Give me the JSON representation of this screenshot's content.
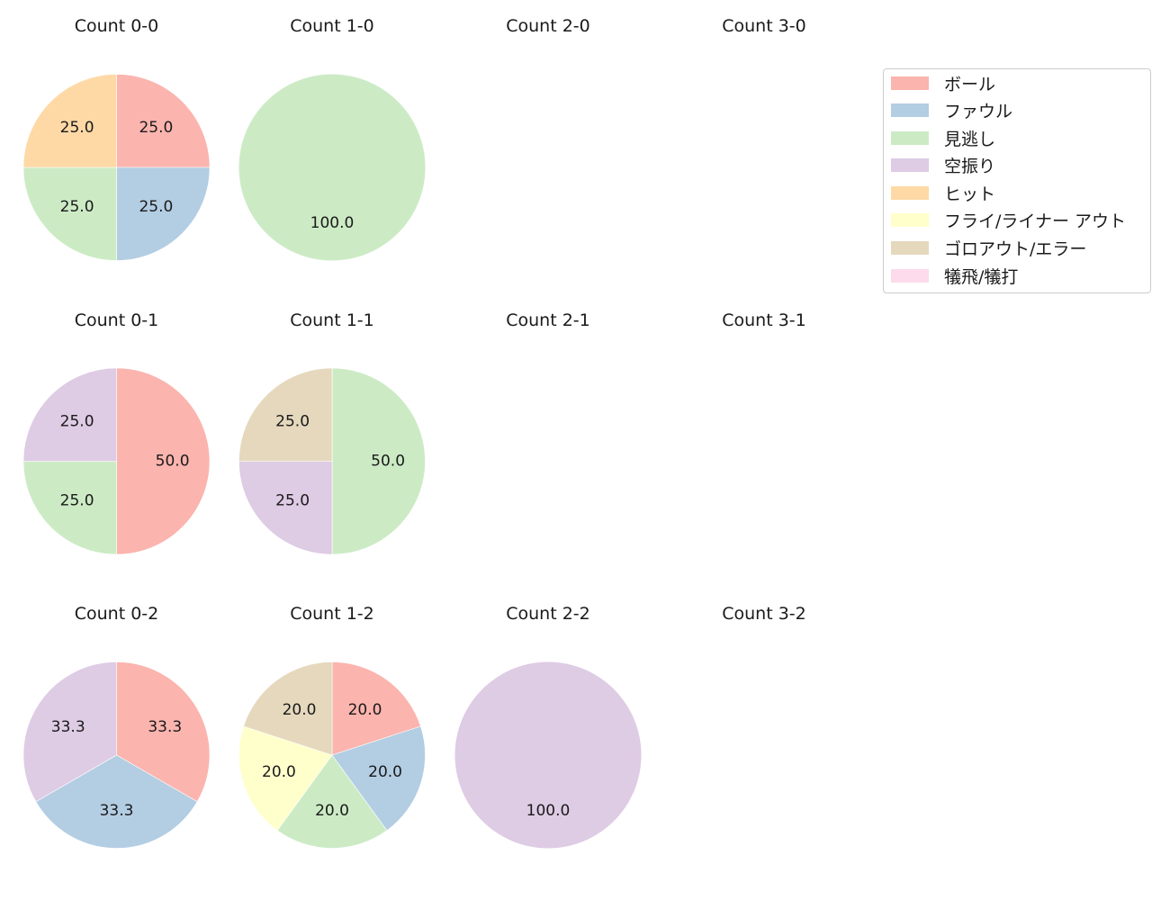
{
  "chart_data": {
    "type": "pie",
    "title": "",
    "start_angle": 90,
    "direction": "clockwise",
    "legend_position": "upper right",
    "categories": [
      "ボール",
      "ファウル",
      "見逃し",
      "空振り",
      "ヒット",
      "フライ/ライナー アウト",
      "ゴロアウト/エラー",
      "犠飛/犠打"
    ],
    "colors": [
      "#fbb4ae",
      "#b3cde3",
      "#ccebc5",
      "#decbe4",
      "#fed9a6",
      "#ffffcc",
      "#e5d8bd",
      "#fddaec"
    ],
    "charts": [
      {
        "title": "Count 0-0",
        "row": 0,
        "col": 0,
        "values": [
          25.0,
          25.0,
          25.0,
          0,
          25.0,
          0,
          0,
          0
        ]
      },
      {
        "title": "Count 1-0",
        "row": 0,
        "col": 1,
        "values": [
          0,
          0,
          100.0,
          0,
          0,
          0,
          0,
          0
        ]
      },
      {
        "title": "Count 2-0",
        "row": 0,
        "col": 2,
        "values": []
      },
      {
        "title": "Count 3-0",
        "row": 0,
        "col": 3,
        "values": []
      },
      {
        "title": "Count 0-1",
        "row": 1,
        "col": 0,
        "values": [
          50.0,
          0,
          25.0,
          25.0,
          0,
          0,
          0,
          0
        ]
      },
      {
        "title": "Count 1-1",
        "row": 1,
        "col": 1,
        "values": [
          0,
          0,
          50.0,
          25.0,
          0,
          0,
          25.0,
          0
        ]
      },
      {
        "title": "Count 2-1",
        "row": 1,
        "col": 2,
        "values": []
      },
      {
        "title": "Count 3-1",
        "row": 1,
        "col": 3,
        "values": []
      },
      {
        "title": "Count 0-2",
        "row": 2,
        "col": 0,
        "values": [
          33.3,
          33.3,
          0,
          33.3,
          0,
          0,
          0,
          0
        ]
      },
      {
        "title": "Count 1-2",
        "row": 2,
        "col": 1,
        "values": [
          20.0,
          20.0,
          20.0,
          0,
          0,
          20.0,
          20.0,
          0
        ]
      },
      {
        "title": "Count 2-2",
        "row": 2,
        "col": 2,
        "values": [
          0,
          0,
          0,
          100.0,
          0,
          0,
          0,
          0
        ]
      },
      {
        "title": "Count 3-2",
        "row": 2,
        "col": 3,
        "values": []
      }
    ]
  },
  "legend": {
    "items": [
      {
        "label": "ボール",
        "color": "#fbb4ae"
      },
      {
        "label": "ファウル",
        "color": "#b3cde3"
      },
      {
        "label": "見逃し",
        "color": "#ccebc5"
      },
      {
        "label": "空振り",
        "color": "#decbe4"
      },
      {
        "label": "ヒット",
        "color": "#fed9a6"
      },
      {
        "label": "フライ/ライナー アウト",
        "color": "#ffffcc"
      },
      {
        "label": "ゴロアウト/エラー",
        "color": "#e5d8bd"
      },
      {
        "label": "犠飛/犠打",
        "color": "#fddaec"
      }
    ]
  }
}
